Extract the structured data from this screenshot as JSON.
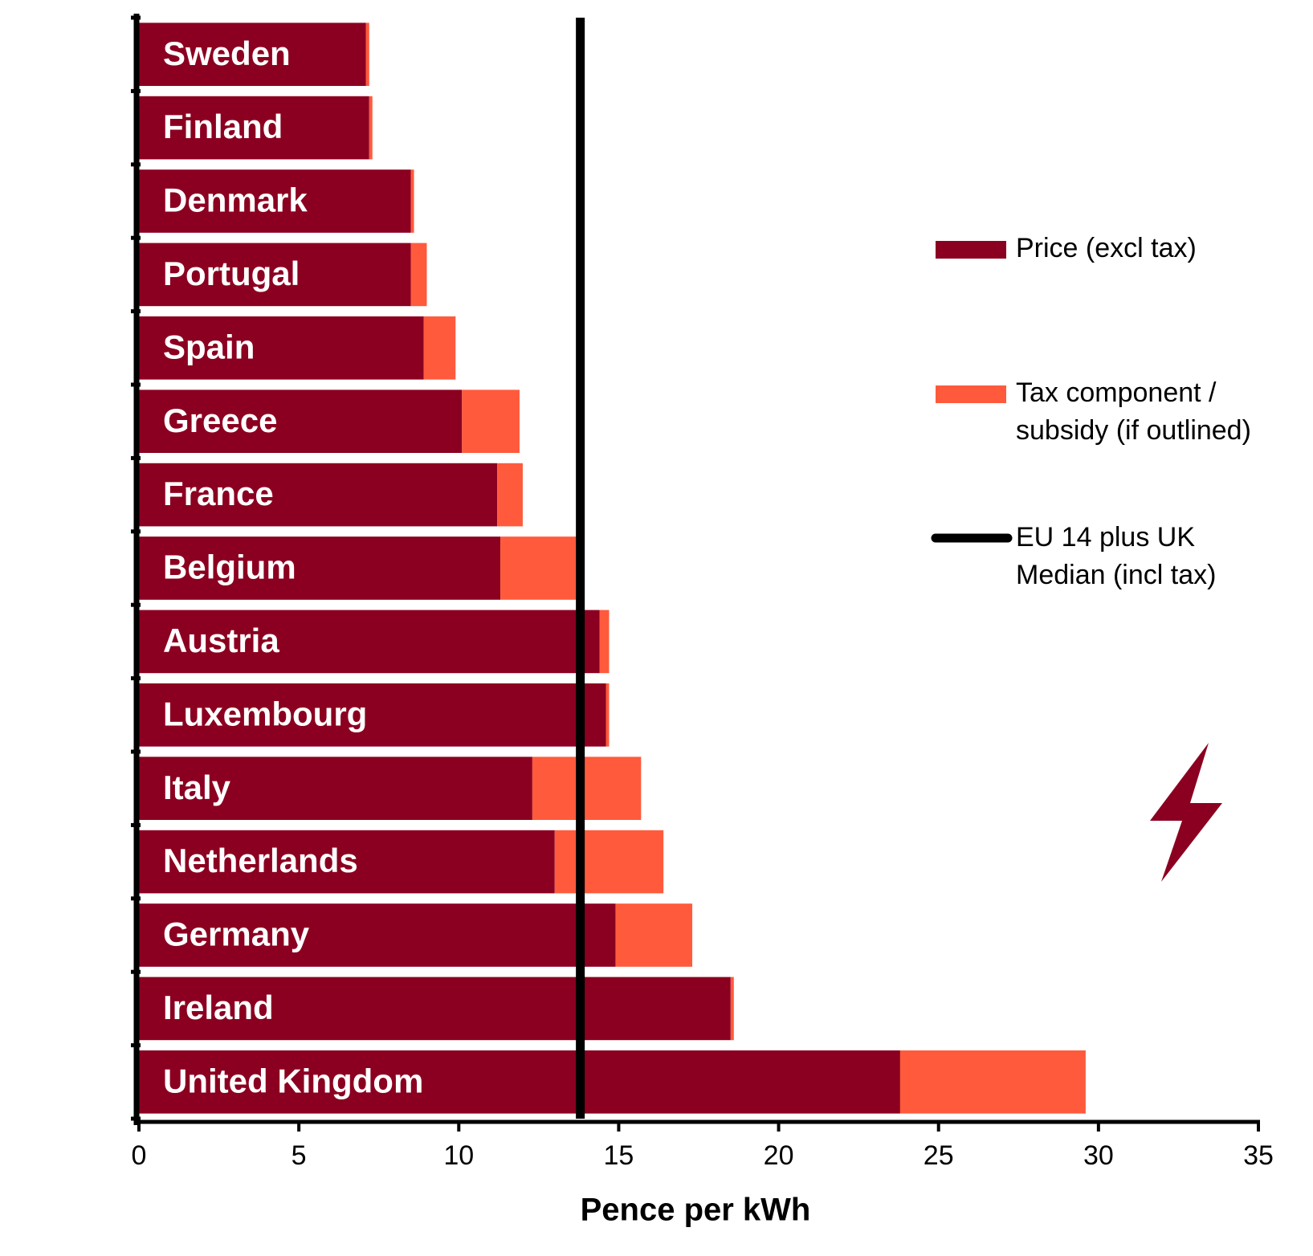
{
  "chart_data": {
    "type": "stacked-barh",
    "categories": [
      "Sweden",
      "Finland",
      "Denmark",
      "Portugal",
      "Spain",
      "Greece",
      "France",
      "Belgium",
      "Austria",
      "Luxembourg",
      "Italy",
      "Netherlands",
      "Germany",
      "Ireland",
      "United Kingdom"
    ],
    "series": [
      {
        "name": "Price (excl tax)",
        "color": "#8b0020",
        "values": [
          7.1,
          7.2,
          8.5,
          8.5,
          8.9,
          10.1,
          11.2,
          11.3,
          14.4,
          14.6,
          12.3,
          13.0,
          14.9,
          18.5,
          23.8
        ]
      },
      {
        "name": "Tax component / subsidy (if outlined)",
        "color": "#ff5a3c",
        "values": [
          0.1,
          0.1,
          0.1,
          0.5,
          1.0,
          1.8,
          0.8,
          2.4,
          0.3,
          0.1,
          3.4,
          3.4,
          2.4,
          0.1,
          5.8
        ]
      }
    ],
    "median": {
      "name": "EU 14 plus UK Median (incl tax)",
      "value": 13.8,
      "color": "#000000"
    },
    "xlabel": "Pence per kWh",
    "xlim": [
      0,
      35
    ],
    "xticks": [
      0,
      5,
      10,
      15,
      20,
      25,
      30,
      35
    ]
  }
}
